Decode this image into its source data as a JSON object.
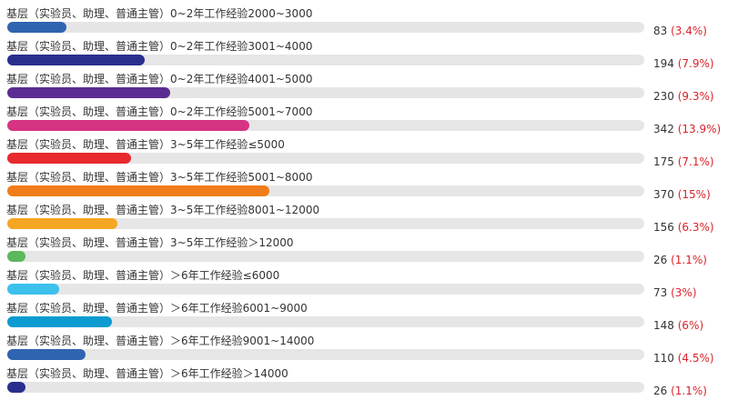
{
  "chart_data": {
    "type": "bar",
    "orientation": "horizontal",
    "categories": [
      "基层（实验员、助理、普通主管）0~2年工作经验2000~3000",
      "基层（实验员、助理、普通主管）0~2年工作经验3001~4000",
      "基层（实验员、助理、普通主管）0~2年工作经验4001~5000",
      "基层（实验员、助理、普通主管）0~2年工作经验5001~7000",
      "基层（实验员、助理、普通主管）3~5年工作经验≤5000",
      "基层（实验员、助理、普通主管）3~5年工作经验5001~8000",
      "基层（实验员、助理、普通主管）3~5年工作经验8001~12000",
      "基层（实验员、助理、普通主管）3~5年工作经验＞12000",
      "基层（实验员、助理、普通主管）＞6年工作经验≤6000",
      "基层（实验员、助理、普通主管）＞6年工作经验6001~9000",
      "基层（实验员、助理、普通主管）＞6年工作经验9001~14000",
      "基层（实验员、助理、普通主管）＞6年工作经验＞14000"
    ],
    "values": [
      83,
      194,
      230,
      342,
      175,
      370,
      156,
      26,
      73,
      148,
      110,
      26
    ],
    "percent_labels": [
      "(3.4%)",
      "(7.9%)",
      "(9.3%)",
      "(13.9%)",
      "(7.1%)",
      "(15%)",
      "(6.3%)",
      "(1.1%)",
      "(3%)",
      "(6%)",
      "(4.5%)",
      "(1.1%)"
    ],
    "colors": [
      "#2f64b0",
      "#2a2f8e",
      "#5c2d91",
      "#d63384",
      "#e8292e",
      "#f07d1a",
      "#f5a623",
      "#5cb85c",
      "#3cc1ec",
      "#0b9bd0",
      "#2f64b0",
      "#2a2f8e"
    ],
    "track_color": "#e6e6e6",
    "percent_color": "#d9232a",
    "xlim": [
      0,
      900
    ],
    "grid": false,
    "legend": "none",
    "title": "",
    "xlabel": "",
    "ylabel": ""
  }
}
